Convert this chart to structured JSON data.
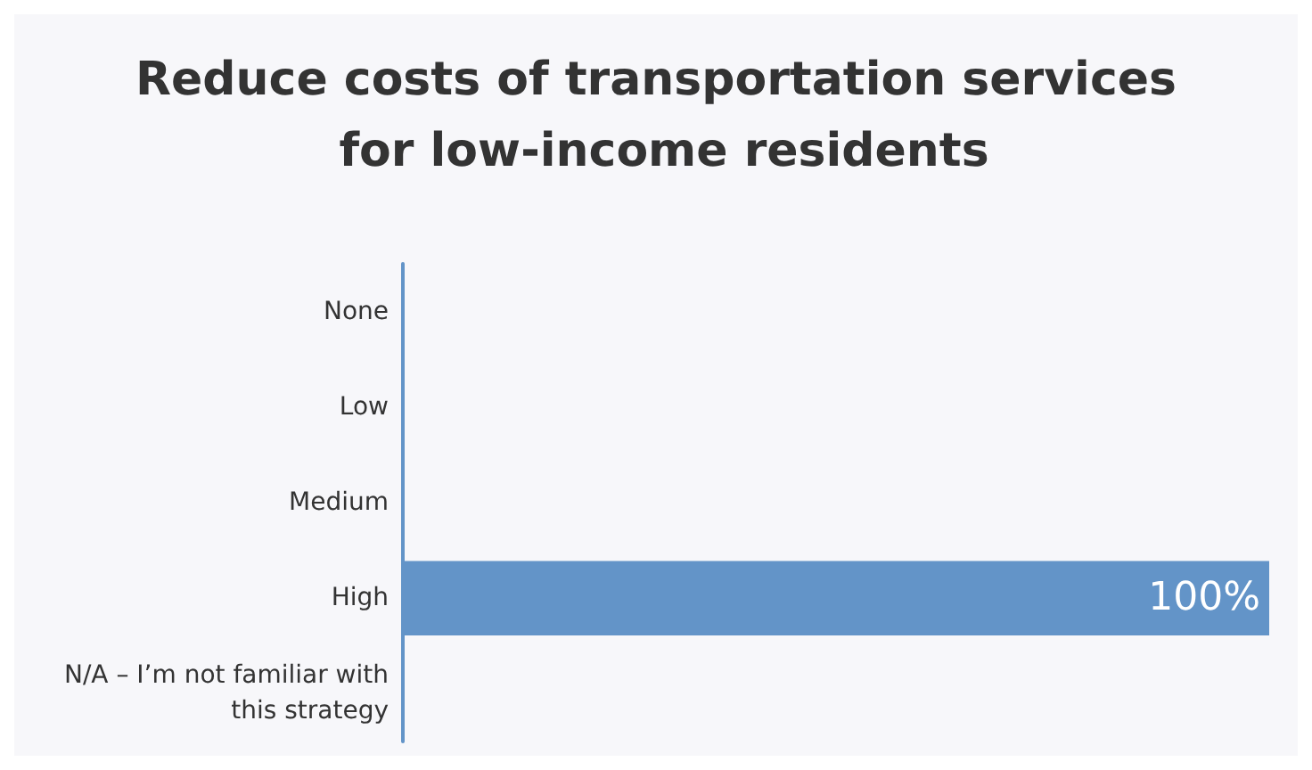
{
  "chart_data": {
    "type": "bar",
    "orientation": "horizontal",
    "title": "Reduce costs of transportation services for low-income residents",
    "categories": [
      "None",
      "Low",
      "Medium",
      "High",
      "N/A – I’m not familiar with this strategy"
    ],
    "values": [
      0,
      0,
      0,
      100,
      0
    ],
    "color": "#6394c8",
    "value_labels": [
      null,
      null,
      null,
      "100%",
      null
    ],
    "xlim": [
      0,
      100
    ],
    "tick_labels": "y",
    "grid": false
  }
}
